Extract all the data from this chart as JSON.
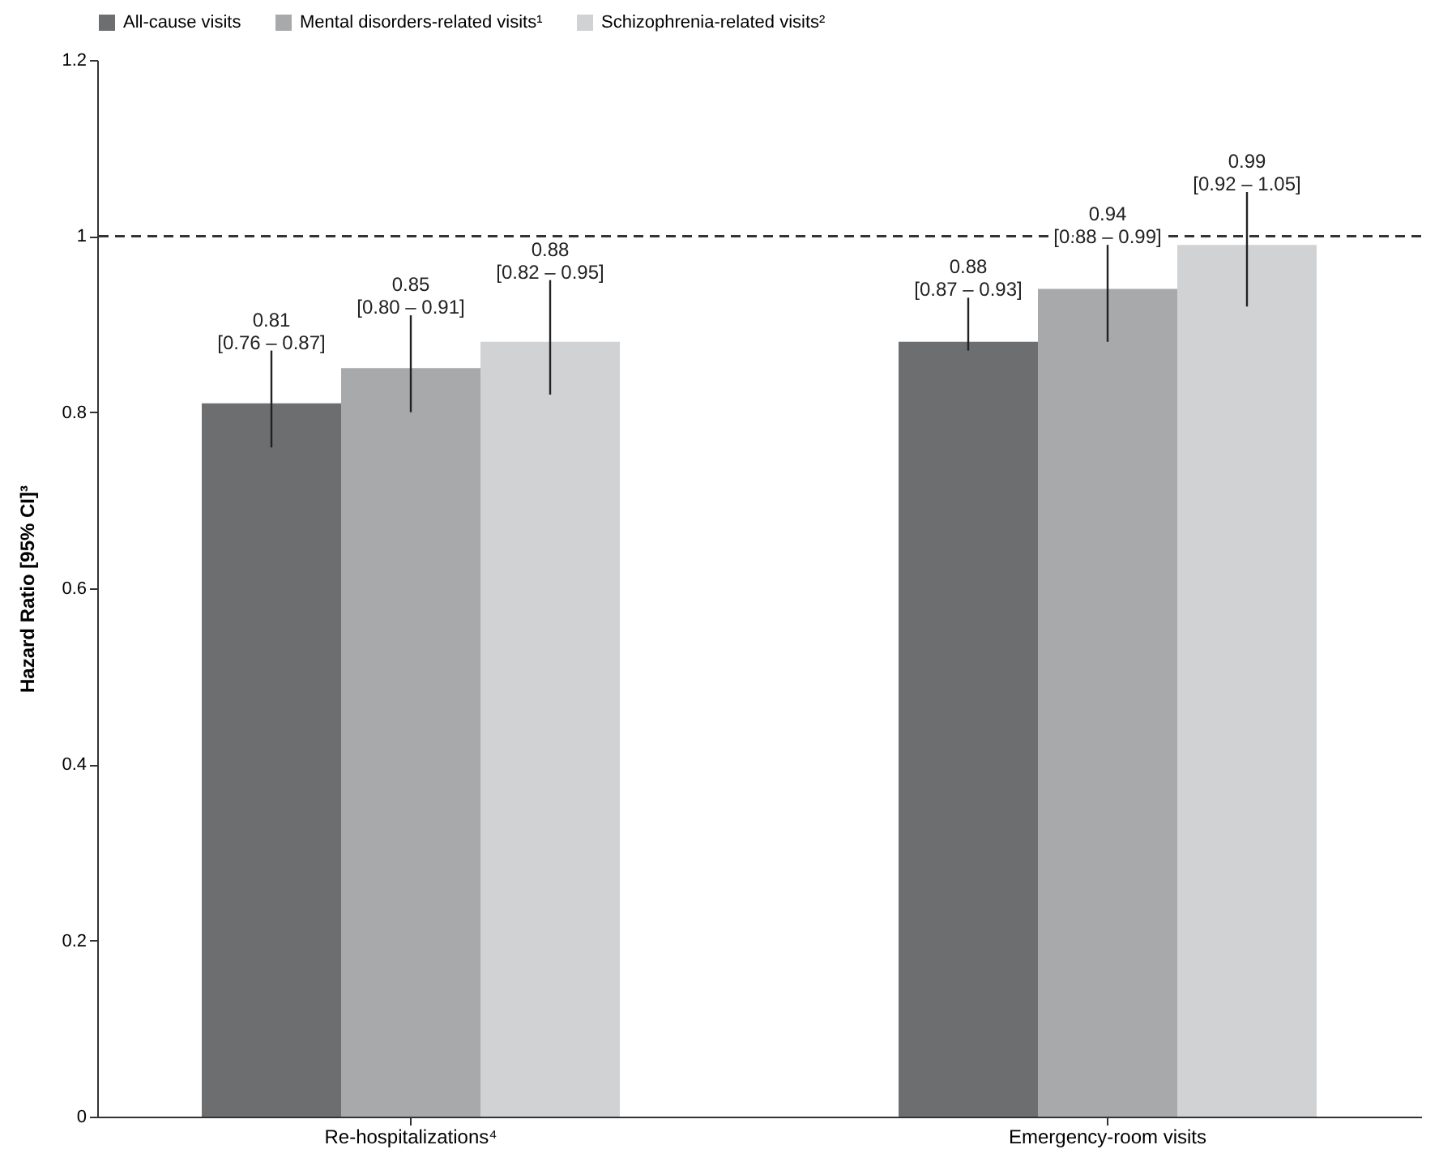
{
  "chart_data": {
    "type": "bar",
    "ylabel": "Hazard Ratio [95% CI]³",
    "categories": [
      "Re-hospitalizations⁴",
      "Emergency-room visits"
    ],
    "series": [
      {
        "name": "All-cause visits",
        "color": "#6d6e70",
        "values": [
          0.81,
          0.88
        ],
        "errors": [
          [
            0.76,
            0.87
          ],
          [
            0.87,
            0.93
          ]
        ],
        "value_labels": [
          "0.81\n[0.76 – 0.87]",
          "0.88\n[0.87 – 0.93]"
        ]
      },
      {
        "name": "Mental disorders-related visits¹",
        "color": "#a7a9ab",
        "values": [
          0.85,
          0.94
        ],
        "errors": [
          [
            0.8,
            0.91
          ],
          [
            0.88,
            0.99
          ]
        ],
        "value_labels": [
          "0.85\n[0.80 – 0.91]",
          "0.94\n[0.88 – 0.99]"
        ]
      },
      {
        "name": "Schizophrenia-related visits²",
        "color": "#d1d2d4",
        "values": [
          0.88,
          0.99
        ],
        "errors": [
          [
            0.82,
            0.95
          ],
          [
            0.92,
            1.05
          ]
        ],
        "value_labels": [
          "0.88\n[0.82 – 0.95]",
          "0.99\n[0.92 – 1.05]"
        ]
      }
    ],
    "ylim": [
      0,
      1.2
    ],
    "yticks": [
      0,
      0.2,
      0.4,
      0.6,
      0.8,
      1,
      1.2
    ],
    "ref_lines": [
      {
        "axis": "y",
        "value": 1,
        "line_style": "dashed",
        "color": "#333333"
      }
    ],
    "legend": "top",
    "grid": false
  }
}
